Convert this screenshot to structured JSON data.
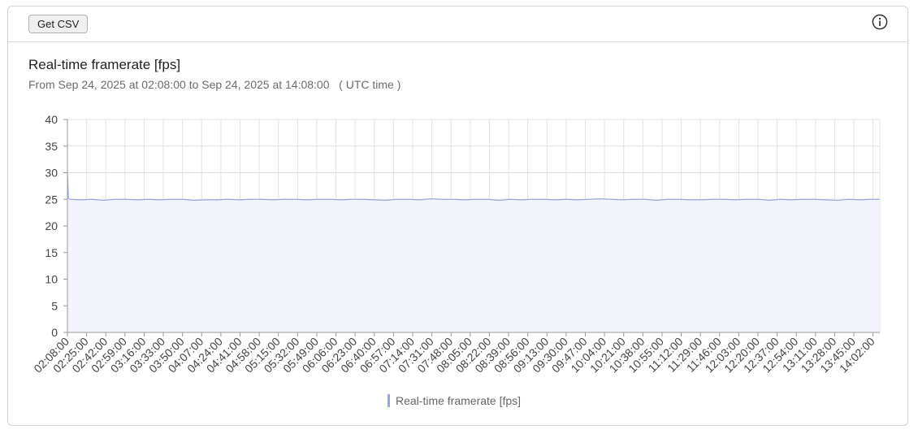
{
  "toolbar": {
    "csv_label": "Get CSV"
  },
  "icons": {
    "info": "info-icon"
  },
  "colors": {
    "series_line": "#98a8e0",
    "series_fill": "#f4f5fc",
    "grid": "#e2e2e2",
    "axis": "#999999"
  },
  "chart_data": {
    "type": "area",
    "title": "Real-time framerate [fps]",
    "subtitle": "From Sep 24, 2025 at 02:08:00 to Sep 24, 2025 at 14:08:00   ( UTC time )",
    "xlabel": "",
    "ylabel": "",
    "ylim": [
      0,
      40
    ],
    "y_ticks": [
      0,
      5,
      10,
      15,
      20,
      25,
      30,
      35,
      40
    ],
    "x_range": [
      "02:08:00",
      "14:08:00"
    ],
    "x_ticks": [
      "02:08:00",
      "02:25:00",
      "02:42:00",
      "02:59:00",
      "03:16:00",
      "03:33:00",
      "03:50:00",
      "04:07:00",
      "04:24:00",
      "04:41:00",
      "04:58:00",
      "05:15:00",
      "05:32:00",
      "05:49:00",
      "06:06:00",
      "06:23:00",
      "06:40:00",
      "06:57:00",
      "07:14:00",
      "07:31:00",
      "07:48:00",
      "08:05:00",
      "08:22:00",
      "08:39:00",
      "08:56:00",
      "09:13:00",
      "09:30:00",
      "09:47:00",
      "10:04:00",
      "10:21:00",
      "10:38:00",
      "10:55:00",
      "11:12:00",
      "11:29:00",
      "11:46:00",
      "12:03:00",
      "12:20:00",
      "12:37:00",
      "12:54:00",
      "13:11:00",
      "13:28:00",
      "13:45:00",
      "14:02:00"
    ],
    "grid": true,
    "legend_position": "bottom",
    "series": [
      {
        "name": "Real-time framerate [fps]",
        "x": [
          "02:08:00",
          "02:09:00",
          "02:10:00",
          "02:20:00",
          "02:30:00",
          "02:40:00",
          "02:50:00",
          "03:00:00",
          "03:10:00",
          "03:20:00",
          "03:30:00",
          "03:40:00",
          "03:50:00",
          "04:00:00",
          "04:10:00",
          "04:20:00",
          "04:30:00",
          "04:40:00",
          "04:50:00",
          "05:00:00",
          "05:10:00",
          "05:20:00",
          "05:30:00",
          "05:40:00",
          "05:50:00",
          "06:00:00",
          "06:10:00",
          "06:20:00",
          "06:30:00",
          "06:40:00",
          "06:50:00",
          "07:00:00",
          "07:10:00",
          "07:20:00",
          "07:30:00",
          "07:40:00",
          "07:50:00",
          "08:00:00",
          "08:10:00",
          "08:20:00",
          "08:30:00",
          "08:40:00",
          "08:50:00",
          "09:00:00",
          "09:10:00",
          "09:20:00",
          "09:30:00",
          "09:40:00",
          "09:50:00",
          "10:00:00",
          "10:10:00",
          "10:20:00",
          "10:30:00",
          "10:40:00",
          "10:50:00",
          "11:00:00",
          "11:10:00",
          "11:20:00",
          "11:30:00",
          "11:40:00",
          "11:50:00",
          "12:00:00",
          "12:10:00",
          "12:20:00",
          "12:30:00",
          "12:40:00",
          "12:50:00",
          "13:00:00",
          "13:10:00",
          "13:20:00",
          "13:30:00",
          "13:40:00",
          "13:50:00",
          "14:00:00",
          "14:08:00"
        ],
        "values": [
          30,
          25.2,
          25,
          24.9,
          25,
          24.8,
          25,
          25,
          24.9,
          25,
          24.9,
          25,
          25,
          24.8,
          24.9,
          24.9,
          25,
          24.9,
          25,
          25,
          24.9,
          25,
          25,
          24.9,
          25,
          25,
          24.9,
          25,
          25,
          24.9,
          24.8,
          25,
          25,
          24.9,
          25.1,
          25,
          25,
          24.9,
          25,
          25,
          24.8,
          25,
          24.9,
          25,
          25,
          24.9,
          25,
          24.9,
          25,
          25.1,
          25,
          24.9,
          25,
          25,
          24.8,
          25,
          25,
          24.9,
          24.9,
          25,
          25,
          24.9,
          25,
          25,
          24.8,
          25,
          24.9,
          25,
          25,
          24.9,
          24.8,
          25,
          24.9,
          25,
          25
        ]
      }
    ]
  }
}
